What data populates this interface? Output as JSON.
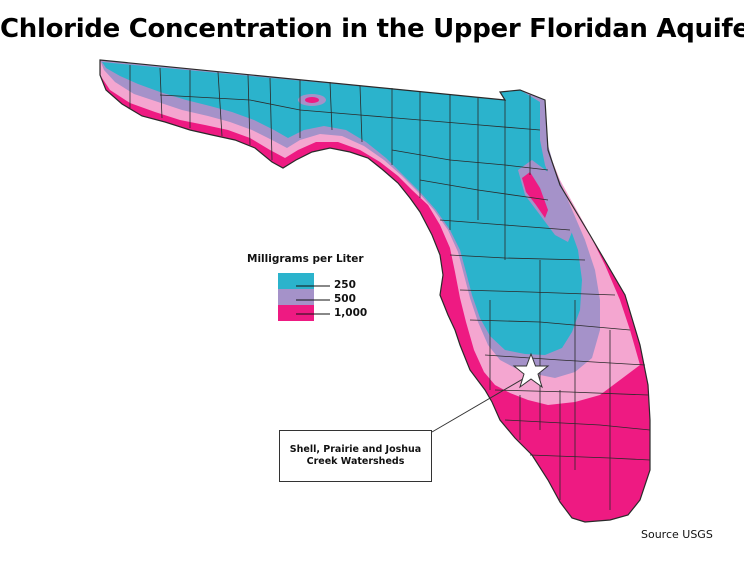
{
  "title": "Chloride Concentration in the Upper Floridan Aquifer",
  "legend": {
    "title": "Milligrams per Liter",
    "items": [
      {
        "label": "250",
        "color": "#2bb3cc"
      },
      {
        "label": "500",
        "color": "#a592c9"
      },
      {
        "label": "1,000",
        "color": "#ee1a82"
      }
    ]
  },
  "zone_colors": {
    "low": "#2bb3cc",
    "mid": "#a592c9",
    "light": "#f4a6d0",
    "high": "#ee1a82",
    "boundaries": "#2a2a2a"
  },
  "marker": {
    "label": "Shell, Prairie and Joshua Creek Watersheds",
    "icon": "star-icon"
  },
  "source": "Source USGS"
}
